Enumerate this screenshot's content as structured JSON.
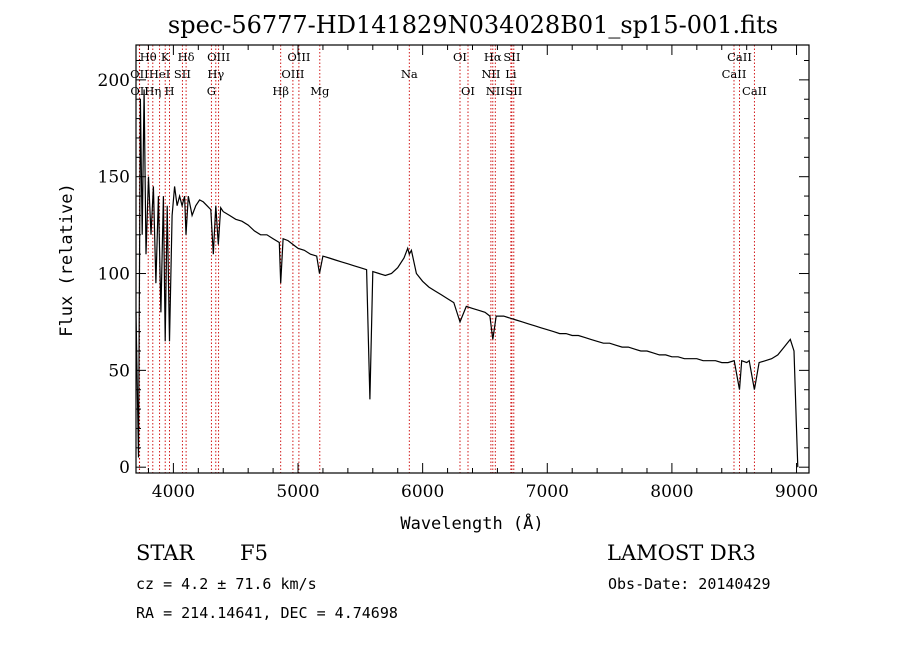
{
  "chart_data": {
    "type": "line",
    "title": "spec-56777-HD141829N034028B01_sp15-001.fits",
    "xlabel": "Wavelength (Å)",
    "ylabel": "Flux (relative)",
    "xlim": [
      3700,
      9100
    ],
    "ylim": [
      -3,
      218
    ],
    "xticks": [
      4000,
      5000,
      6000,
      7000,
      8000,
      9000
    ],
    "xtick_labels": [
      "4000",
      "5000",
      "6000",
      "7000",
      "8000",
      "9000"
    ],
    "yticks": [
      0,
      50,
      100,
      150,
      200
    ],
    "ytick_labels": [
      "0",
      "50",
      "100",
      "150",
      "200"
    ],
    "grid": false,
    "series": [
      {
        "name": "flux",
        "x": [
          3700,
          3720,
          3735,
          3750,
          3765,
          3780,
          3800,
          3820,
          3840,
          3860,
          3880,
          3900,
          3920,
          3934,
          3950,
          3969,
          3990,
          4010,
          4030,
          4050,
          4070,
          4090,
          4101,
          4120,
          4150,
          4180,
          4210,
          4240,
          4270,
          4300,
          4320,
          4340,
          4360,
          4380,
          4400,
          4450,
          4500,
          4550,
          4600,
          4650,
          4700,
          4750,
          4800,
          4850,
          4861,
          4880,
          4920,
          4960,
          5000,
          5050,
          5100,
          5150,
          5172,
          5200,
          5250,
          5300,
          5350,
          5400,
          5450,
          5500,
          5550,
          5577,
          5600,
          5650,
          5700,
          5750,
          5800,
          5850,
          5880,
          5893,
          5910,
          5950,
          6000,
          6050,
          6100,
          6150,
          6200,
          6250,
          6300,
          6350,
          6400,
          6450,
          6500,
          6540,
          6563,
          6590,
          6650,
          6700,
          6750,
          6800,
          6850,
          6900,
          6950,
          7000,
          7050,
          7100,
          7150,
          7200,
          7250,
          7300,
          7350,
          7400,
          7450,
          7500,
          7550,
          7600,
          7650,
          7700,
          7750,
          7800,
          7850,
          7900,
          7950,
          8000,
          8050,
          8100,
          8150,
          8200,
          8250,
          8300,
          8350,
          8400,
          8450,
          8500,
          8542,
          8560,
          8600,
          8620,
          8662,
          8700,
          8750,
          8800,
          8850,
          8900,
          8950,
          8980,
          9000,
          9010
        ],
        "y": [
          80,
          5,
          190,
          120,
          195,
          110,
          150,
          120,
          145,
          95,
          140,
          80,
          140,
          65,
          135,
          65,
          130,
          145,
          135,
          140,
          135,
          140,
          120,
          140,
          130,
          135,
          138,
          137,
          135,
          133,
          110,
          135,
          115,
          134,
          132,
          130,
          128,
          127,
          125,
          122,
          120,
          120,
          118,
          116,
          95,
          118,
          117,
          115,
          113,
          112,
          110,
          109,
          100,
          109,
          108,
          107,
          106,
          105,
          104,
          103,
          102,
          35,
          101,
          100,
          99,
          100,
          103,
          108,
          113,
          110,
          112,
          100,
          96,
          93,
          91,
          89,
          87,
          85,
          75,
          83,
          82,
          81,
          80,
          78,
          66,
          78,
          78,
          77,
          76,
          75,
          74,
          73,
          72,
          71,
          70,
          69,
          69,
          68,
          68,
          67,
          66,
          65,
          64,
          64,
          63,
          62,
          62,
          61,
          60,
          60,
          59,
          58,
          58,
          57,
          57,
          56,
          56,
          56,
          55,
          55,
          55,
          54,
          54,
          55,
          40,
          55,
          54,
          55,
          40,
          54,
          55,
          56,
          58,
          62,
          66,
          60,
          20,
          0
        ]
      }
    ],
    "spectral_lines": [
      {
        "name": "Hθ",
        "wavelength": 3798,
        "row": 0
      },
      {
        "name": "OII",
        "wavelength": 3727,
        "row": 1
      },
      {
        "name": "OII",
        "wavelength": 3729,
        "row": 2
      },
      {
        "name": "HeI",
        "wavelength": 3889,
        "row": 1
      },
      {
        "name": "Hη",
        "wavelength": 3835,
        "row": 2
      },
      {
        "name": "K",
        "wavelength": 3934,
        "row": 0
      },
      {
        "name": "H",
        "wavelength": 3969,
        "row": 2
      },
      {
        "name": "SII",
        "wavelength": 4072,
        "row": 1
      },
      {
        "name": "Hδ",
        "wavelength": 4102,
        "row": 0
      },
      {
        "name": "OIII",
        "wavelength": 4363,
        "row": 0
      },
      {
        "name": "Hγ",
        "wavelength": 4340,
        "row": 1
      },
      {
        "name": "G",
        "wavelength": 4305,
        "row": 2
      },
      {
        "name": "Hβ",
        "wavelength": 4861,
        "row": 2
      },
      {
        "name": "OIII",
        "wavelength": 5007,
        "row": 0
      },
      {
        "name": "OIII",
        "wavelength": 4959,
        "row": 1
      },
      {
        "name": "Mg",
        "wavelength": 5175,
        "row": 2
      },
      {
        "name": "Na",
        "wavelength": 5893,
        "row": 1
      },
      {
        "name": "OI",
        "wavelength": 6300,
        "row": 0
      },
      {
        "name": "OI",
        "wavelength": 6364,
        "row": 2
      },
      {
        "name": "Hα",
        "wavelength": 6563,
        "row": 0
      },
      {
        "name": "NII",
        "wavelength": 6548,
        "row": 1
      },
      {
        "name": "NII",
        "wavelength": 6583,
        "row": 2
      },
      {
        "name": "SII",
        "wavelength": 6716,
        "row": 0
      },
      {
        "name": "Li",
        "wavelength": 6708,
        "row": 1
      },
      {
        "name": "SII",
        "wavelength": 6731,
        "row": 2
      },
      {
        "name": "CaII",
        "wavelength": 8542,
        "row": 0
      },
      {
        "name": "CaII",
        "wavelength": 8498,
        "row": 1
      },
      {
        "name": "CaII",
        "wavelength": 8662,
        "row": 2
      }
    ]
  },
  "info": {
    "object_class": "STAR",
    "subclass": "F5",
    "survey": "LAMOST DR3",
    "redshift": "cz = 4.2 ± 71.6 km/s",
    "obs_date": "Obs-Date: 20140429",
    "coordinates": "RA = 214.14641, DEC =   4.74698"
  },
  "colors": {
    "spectrum": "#000000",
    "line_marker": "#cc0000",
    "axes": "#000000"
  }
}
